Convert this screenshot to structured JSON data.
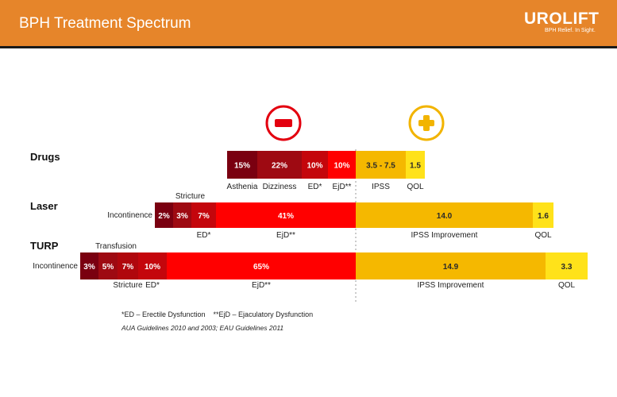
{
  "header": {
    "title": "BPH Treatment Spectrum",
    "logo_text": "UROLIFT",
    "logo_tagline": "BPH Relief. In Sight."
  },
  "colors": {
    "header_bg": "#e6852a",
    "risk_darkest": "#7a0010",
    "risk_dark": "#9e0a12",
    "risk_mid": "#c4060c",
    "risk_bright": "#ff0000",
    "benefit_orange": "#f5b800",
    "benefit_yellow": "#ffe21a",
    "minus_ring": "#e3000f",
    "plus_ring": "#f2b400"
  },
  "icons": {
    "risk": "minus-circle-icon",
    "benefit": "plus-circle-icon"
  },
  "chart_data": {
    "type": "bar",
    "orientation": "horizontal",
    "layout": "diverging",
    "center_line": "dashed",
    "rows": [
      {
        "name": "Drugs",
        "risks": [
          {
            "value": "15%",
            "label": "Asthenia",
            "label_position": "below",
            "color": "#7a0010"
          },
          {
            "value": "22%",
            "label": "Dizziness",
            "label_position": "below",
            "color": "#9e0a12"
          },
          {
            "value": "10%",
            "label": "ED*",
            "label_position": "below",
            "color": "#c4060c"
          },
          {
            "value": "10%",
            "label": "EjD**",
            "label_position": "below",
            "color": "#ff0000"
          }
        ],
        "benefits": [
          {
            "value": "3.5 - 7.5",
            "label": "IPSS",
            "label_position": "below",
            "color": "#f5b800"
          },
          {
            "value": "1.5",
            "label": "QOL",
            "label_position": "below",
            "color": "#ffe21a"
          }
        ]
      },
      {
        "name": "Laser",
        "risks": [
          {
            "value": "2%",
            "label": "Incontinence",
            "label_position": "left",
            "color": "#7a0010"
          },
          {
            "value": "3%",
            "label": "Stricture",
            "label_position": "above",
            "color": "#9e0a12"
          },
          {
            "value": "7%",
            "label": "ED*",
            "label_position": "below",
            "color": "#c4060c"
          },
          {
            "value": "41%",
            "label": "EjD**",
            "label_position": "below",
            "color": "#ff0000"
          }
        ],
        "benefits": [
          {
            "value": "14.0",
            "label": "IPSS Improvement",
            "label_position": "below",
            "color": "#f5b800"
          },
          {
            "value": "1.6",
            "label": "QOL",
            "label_position": "below",
            "color": "#ffe21a"
          }
        ]
      },
      {
        "name": "TURP",
        "risks": [
          {
            "value": "3%",
            "label": "Incontinence",
            "label_position": "left",
            "color": "#7a0010"
          },
          {
            "value": "5%",
            "label": "Transfusion",
            "label_position": "above",
            "color": "#9e0a12"
          },
          {
            "value": "7%",
            "label": "Stricture",
            "label_position": "below",
            "color": "#b0070d"
          },
          {
            "value": "10%",
            "label": "ED*",
            "label_position": "below",
            "color": "#c4060c"
          },
          {
            "value": "65%",
            "label": "EjD**",
            "label_position": "below",
            "color": "#ff0000"
          }
        ],
        "benefits": [
          {
            "value": "14.9",
            "label": "IPSS Improvement",
            "label_position": "below",
            "color": "#f5b800"
          },
          {
            "value": "3.3",
            "label": "QOL",
            "label_position": "below",
            "color": "#ffe21a"
          }
        ]
      }
    ]
  },
  "footnotes": {
    "abbreviations": "*ED – Erectile Dysfunction    **EjD – Ejaculatory Dysfunction",
    "source": "AUA Guidelines 2010 and 2003; EAU Guidelines 2011"
  }
}
